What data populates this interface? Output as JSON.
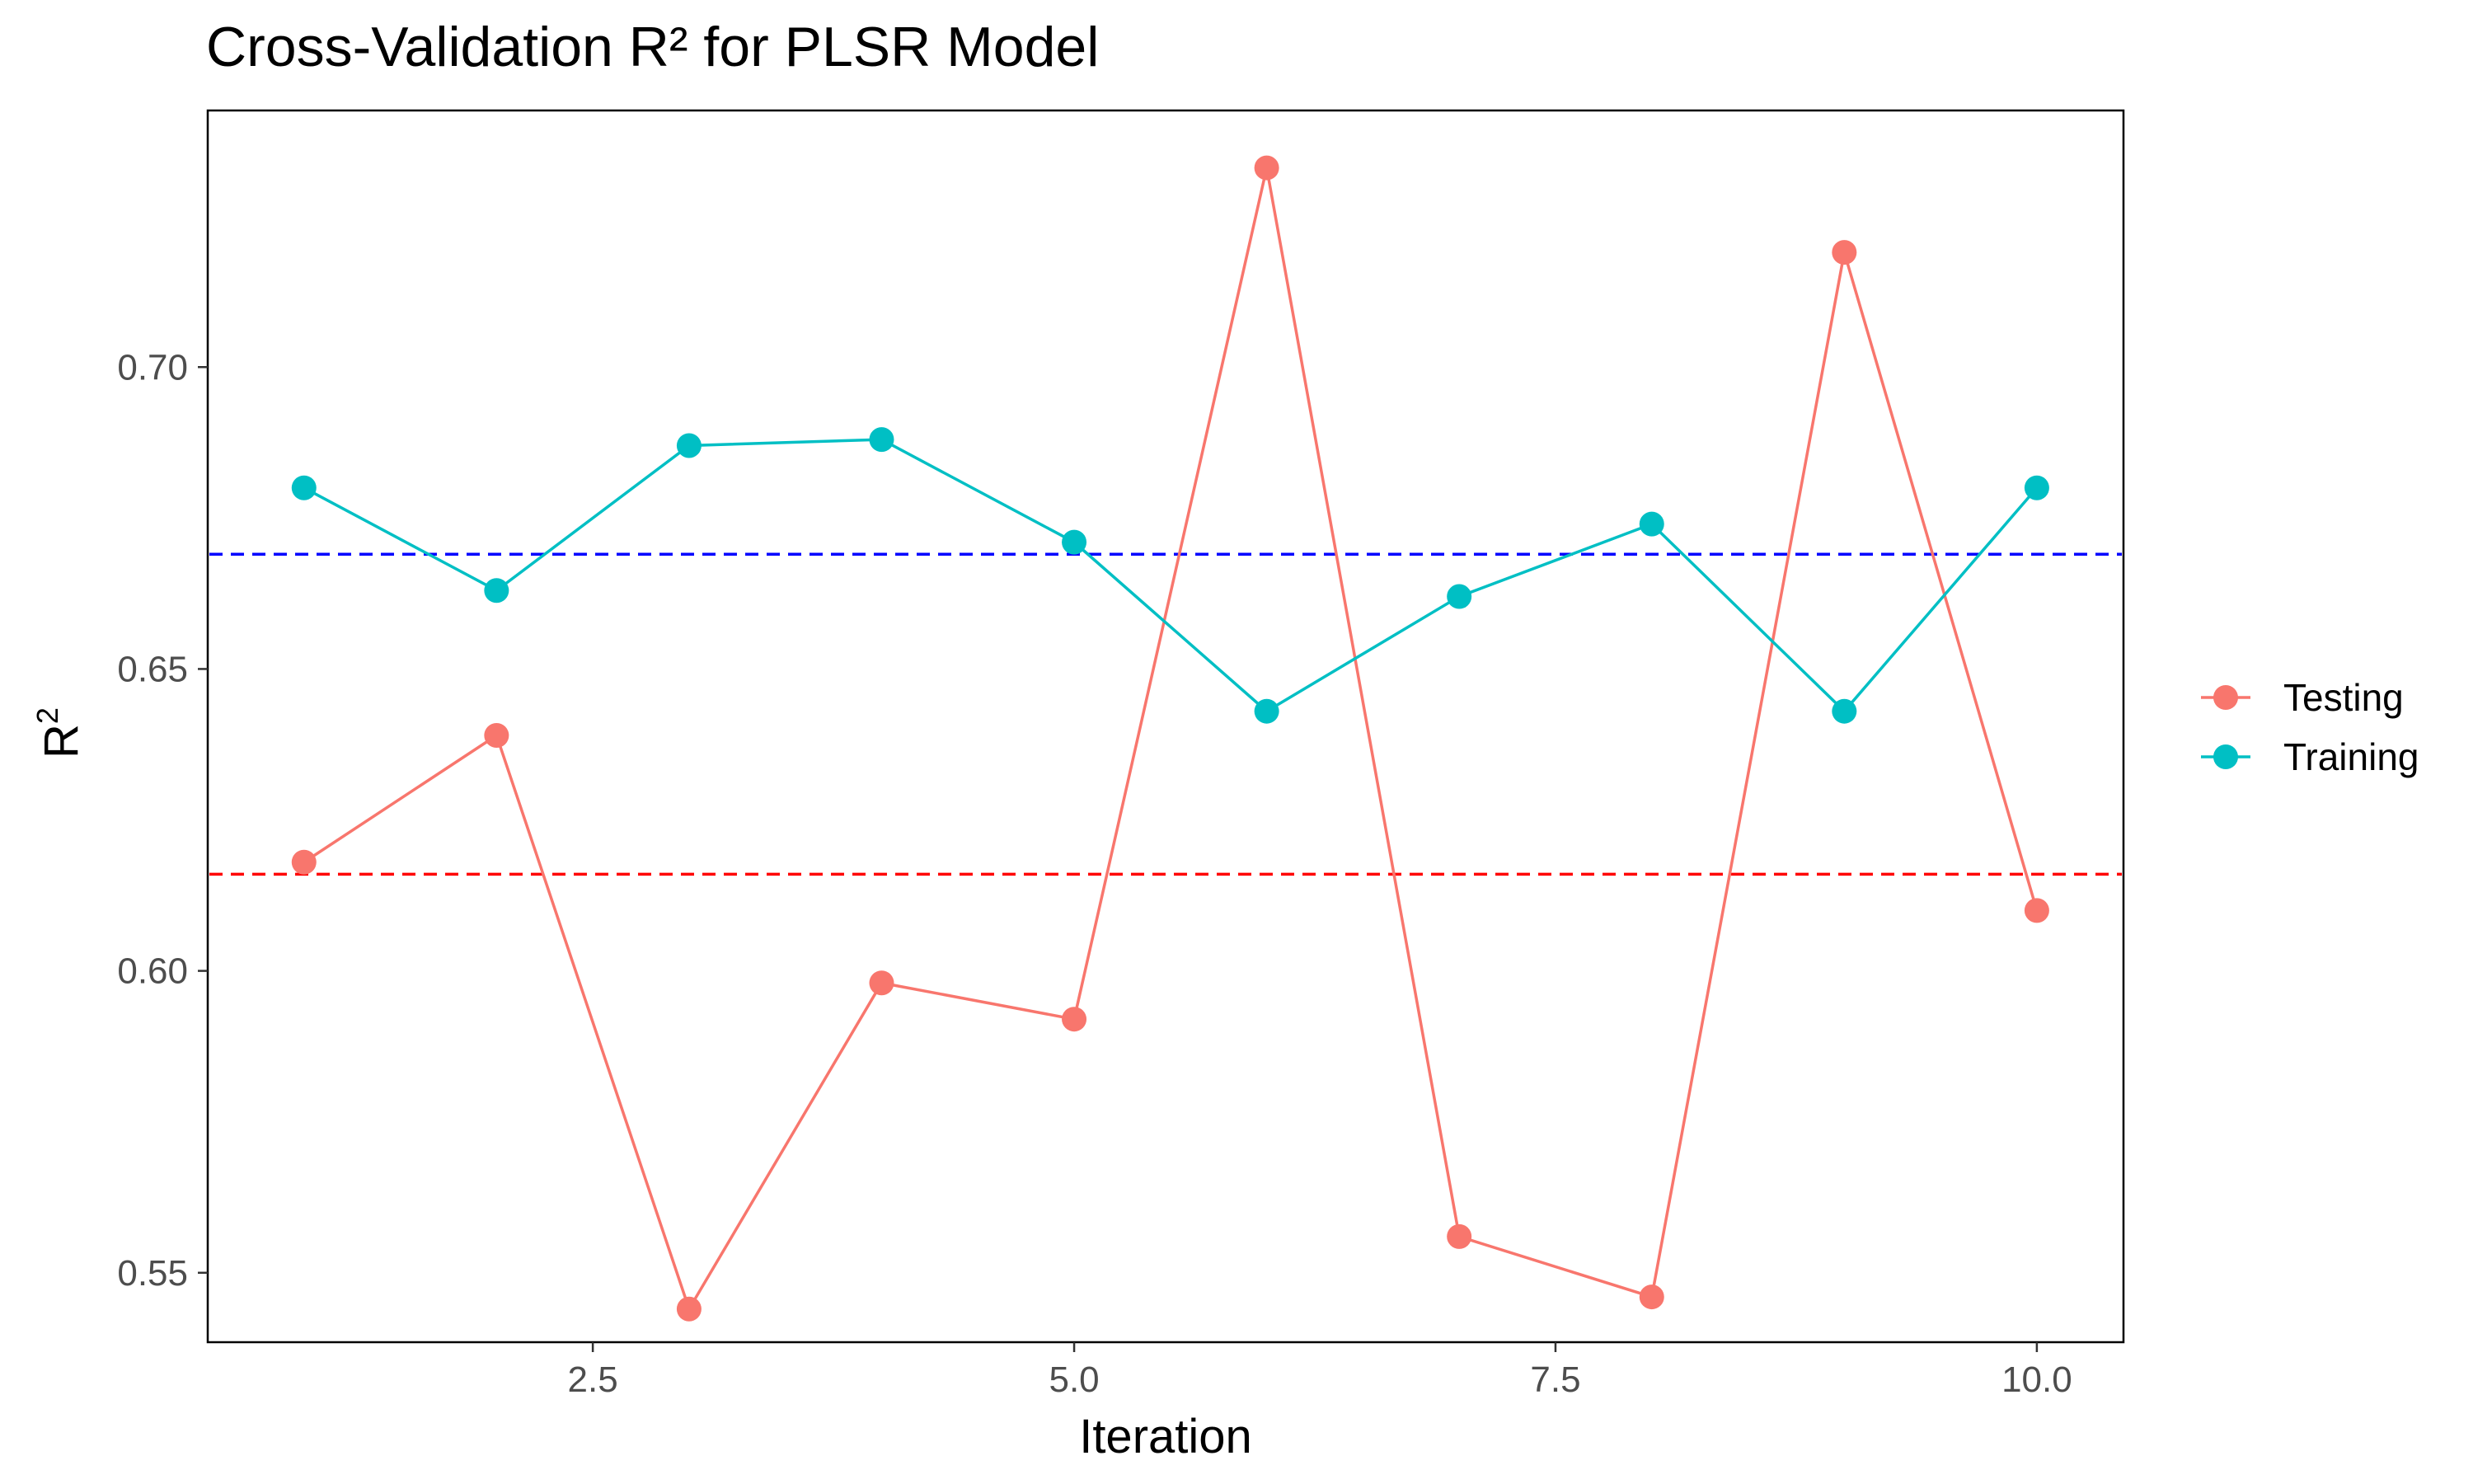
{
  "chart_data": {
    "type": "line",
    "title": "Cross-Validation R² for PLSR Model",
    "xlabel": "Iteration",
    "ylabel": "R",
    "ylabel_superscript": "2",
    "x": [
      1,
      2,
      3,
      4,
      5,
      6,
      7,
      8,
      9,
      10
    ],
    "series": [
      {
        "name": "Testing",
        "color": "#F8766D",
        "values": [
          0.618,
          0.639,
          0.544,
          0.598,
          0.592,
          0.733,
          0.556,
          0.546,
          0.719,
          0.61
        ]
      },
      {
        "name": "Training",
        "color": "#00BFC4",
        "values": [
          0.68,
          0.663,
          0.687,
          0.688,
          0.671,
          0.643,
          0.662,
          0.674,
          0.643,
          0.68
        ]
      }
    ],
    "reference_lines": [
      {
        "series": "Training",
        "value": 0.669,
        "color": "#0000FF",
        "style": "dashed"
      },
      {
        "series": "Testing",
        "value": 0.616,
        "color": "#FF0000",
        "style": "dashed"
      }
    ],
    "xlim": [
      0.5,
      10.45
    ],
    "ylim": [
      0.5385,
      0.7425
    ],
    "xticks": [
      2.5,
      5.0,
      7.5,
      10.0
    ],
    "xtick_labels": [
      "2.5",
      "5.0",
      "7.5",
      "10.0"
    ],
    "yticks": [
      0.55,
      0.6,
      0.65,
      0.7
    ],
    "ytick_labels": [
      "0.55",
      "0.60",
      "0.65",
      "0.70"
    ],
    "grid": false,
    "legend_position": "right"
  }
}
